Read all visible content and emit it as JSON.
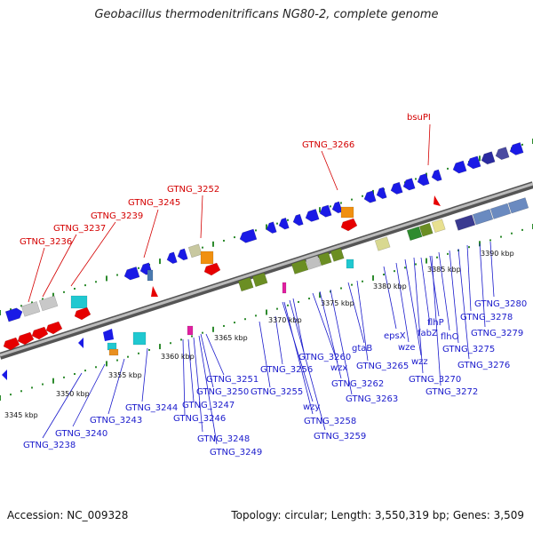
{
  "title": "Geobacillus thermodenitrificans NG80-2, complete genome",
  "footer": {
    "accession": "Accession: NC_009328",
    "topology": "Topology: circular; Length: 3,550,319 bp; Genes: 3,509"
  },
  "colors": {
    "gene_label": "#1a1acc",
    "rna_label": "#d40000",
    "backbone": "#888888",
    "tick": "#2e8b2e"
  },
  "kbp_labels": [
    "3345 kbp",
    "3350 kbp",
    "3355 kbp",
    "3360 kbp",
    "3365 kbp",
    "3370 kbp",
    "3375 kbp",
    "3380 kbp",
    "3385 kbp",
    "3390 kbp"
  ],
  "gene_labels": [
    "GTNG_3238",
    "GTNG_3240",
    "GTNG_3243",
    "GTNG_3244",
    "GTNG_3246",
    "GTNG_3247",
    "GTNG_3248",
    "GTNG_3249",
    "GTNG_3250",
    "GTNG_3251",
    "GTNG_3255",
    "GTNG_3256",
    "GTNG_3258",
    "GTNG_3259",
    "wzy",
    "GTNG_3260",
    "wzx",
    "GTNG_3262",
    "GTNG_3263",
    "gtaB",
    "GTNG_3265",
    "epsX",
    "wze",
    "wzz",
    "GTNG_3270",
    "fabZ",
    "flhP",
    "GTNG_3272",
    "flhO",
    "GTNG_3275",
    "GTNG_3276",
    "GTNG_3278",
    "GTNG_3279",
    "GTNG_3280"
  ],
  "rna_labels": [
    "GTNG_3236",
    "GTNG_3237",
    "GTNG_3239",
    "GTNG_3245",
    "GTNG_3252",
    "GTNG_3266",
    "bsuPI"
  ]
}
